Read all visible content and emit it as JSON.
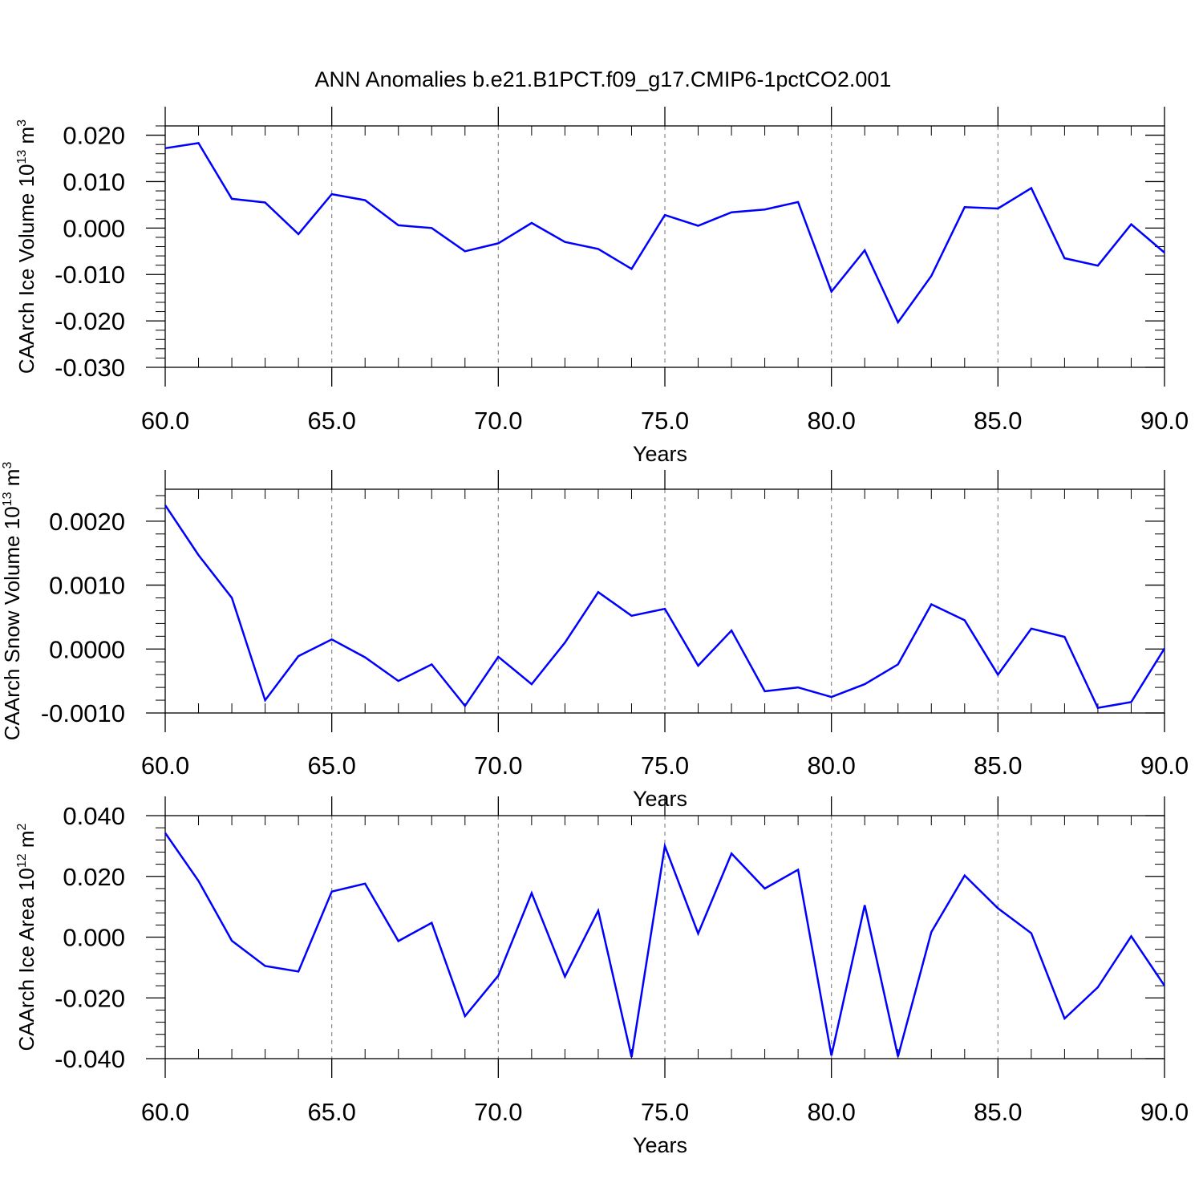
{
  "title": "ANN Anomalies b.e21.B1PCT.f09_g17.CMIP6-1pctCO2.001",
  "colors": {
    "line": "#0000ff",
    "axis": "#000000",
    "grid": "#888888"
  },
  "chart_data": [
    {
      "type": "line",
      "ylabel_main": "CAArch Ice Volume 10",
      "ylabel_sup": "13",
      "ylabel_unit": " m",
      "ylabel_unit_sup": "3",
      "xlabel": "Years",
      "xlim": [
        60,
        90
      ],
      "ylim": [
        -0.03,
        0.022
      ],
      "x_ticks": [
        60,
        65,
        70,
        75,
        80,
        85,
        90
      ],
      "x_tick_labels": [
        "60.0",
        "65.0",
        "70.0",
        "75.0",
        "80.0",
        "85.0",
        "90.0"
      ],
      "y_ticks": [
        -0.03,
        -0.02,
        -0.01,
        0.0,
        0.01,
        0.02
      ],
      "y_tick_labels": [
        "-0.030",
        "-0.020",
        "-0.010",
        "0.000",
        "0.010",
        "0.020"
      ],
      "grid": "vertical-dashed",
      "x": [
        60,
        61,
        62,
        63,
        64,
        65,
        66,
        67,
        68,
        69,
        70,
        71,
        72,
        73,
        74,
        75,
        76,
        77,
        78,
        79,
        80,
        81,
        82,
        83,
        84,
        85,
        86,
        87,
        88,
        89,
        90
      ],
      "values": [
        0.0172,
        0.0183,
        0.0063,
        0.0055,
        -0.0013,
        0.0073,
        0.006,
        0.0006,
        0.0,
        -0.005,
        -0.0033,
        0.0011,
        -0.003,
        -0.0045,
        -0.0088,
        0.0028,
        0.0005,
        0.0034,
        0.004,
        0.0056,
        -0.0137,
        -0.0048,
        -0.0203,
        -0.0103,
        0.0045,
        0.0042,
        0.0086,
        -0.0065,
        -0.0081,
        0.0008,
        -0.0053
      ]
    },
    {
      "type": "line",
      "ylabel_main": "CAArch Snow Volume 10",
      "ylabel_sup": "13",
      "ylabel_unit": " m",
      "ylabel_unit_sup": "3",
      "xlabel": "Years",
      "xlim": [
        60,
        90
      ],
      "ylim": [
        -0.001,
        0.0025
      ],
      "x_ticks": [
        60,
        65,
        70,
        75,
        80,
        85,
        90
      ],
      "x_tick_labels": [
        "60.0",
        "65.0",
        "70.0",
        "75.0",
        "80.0",
        "85.0",
        "90.0"
      ],
      "y_ticks": [
        -0.001,
        0.0,
        0.001,
        0.002
      ],
      "y_tick_labels": [
        "-0.0010",
        "0.0000",
        "0.0010",
        "0.0020"
      ],
      "grid": "vertical-dashed",
      "x": [
        60,
        61,
        62,
        63,
        64,
        65,
        66,
        67,
        68,
        69,
        70,
        71,
        72,
        73,
        74,
        75,
        76,
        77,
        78,
        79,
        80,
        81,
        82,
        83,
        84,
        85,
        86,
        87,
        88,
        89,
        90
      ],
      "values": [
        0.00225,
        0.00147,
        0.0008,
        -0.0008,
        -0.00011,
        0.00015,
        -0.00013,
        -0.0005,
        -0.00024,
        -0.00089,
        -0.00012,
        -0.00055,
        0.0001,
        0.00089,
        0.00052,
        0.00063,
        -0.00026,
        0.00029,
        -0.00066,
        -0.0006,
        -0.00075,
        -0.00055,
        -0.00024,
        0.0007,
        0.00045,
        -0.0004,
        0.00032,
        0.00019,
        -0.00092,
        -0.00083,
        1e-05
      ]
    },
    {
      "type": "line",
      "ylabel_main": "CAArch Ice Area 10",
      "ylabel_sup": "12",
      "ylabel_unit": " m",
      "ylabel_unit_sup": "2",
      "xlabel": "Years",
      "xlim": [
        60,
        90
      ],
      "ylim": [
        -0.04,
        0.04
      ],
      "x_ticks": [
        60,
        65,
        70,
        75,
        80,
        85,
        90
      ],
      "x_tick_labels": [
        "60.0",
        "65.0",
        "70.0",
        "75.0",
        "80.0",
        "85.0",
        "90.0"
      ],
      "y_ticks": [
        -0.04,
        -0.02,
        0.0,
        0.02,
        0.04
      ],
      "y_tick_labels": [
        "-0.040",
        "-0.020",
        "0.000",
        "0.020",
        "0.040"
      ],
      "grid": "vertical-dashed",
      "x": [
        60,
        61,
        62,
        63,
        64,
        65,
        66,
        67,
        68,
        69,
        70,
        71,
        72,
        73,
        74,
        75,
        76,
        77,
        78,
        79,
        80,
        81,
        82,
        83,
        84,
        85,
        86,
        87,
        88,
        89,
        90
      ],
      "values": [
        0.0343,
        0.0185,
        -0.0012,
        -0.0095,
        -0.0113,
        0.015,
        0.0176,
        -0.0013,
        0.0047,
        -0.026,
        -0.0127,
        0.0145,
        -0.013,
        0.0087,
        -0.0395,
        0.03,
        0.0012,
        0.0275,
        0.016,
        0.0222,
        -0.039,
        0.0105,
        -0.0393,
        0.0017,
        0.0203,
        0.0095,
        0.0013,
        -0.0268,
        -0.0165,
        0.0003,
        -0.016
      ]
    }
  ]
}
